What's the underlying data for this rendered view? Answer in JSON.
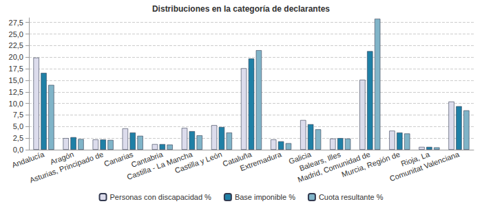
{
  "chart_data": {
    "type": "bar",
    "title": "Distribuciones en la categoría de declarantes",
    "categories": [
      "Andalucía",
      "Aragón",
      "Asturias, Principado de",
      "Canarias",
      "Cantabria",
      "Castilla - La Mancha",
      "Castilla y León",
      "Cataluña",
      "Extremadura",
      "Galicia",
      "Balears, Illes",
      "Madrid, Comunidad de",
      "Murcia, Región de",
      "Rioja, La",
      "Comunitat Valenciana"
    ],
    "series": [
      {
        "name": "Personas con discapacidad %",
        "color": "#dcdcec",
        "values": [
          19.9,
          2.5,
          2.2,
          4.6,
          1.2,
          4.7,
          5.3,
          17.6,
          2.2,
          6.4,
          2.4,
          15.1,
          4.1,
          0.6,
          10.4
        ]
      },
      {
        "name": "Base imponible %",
        "color": "#1f80a6",
        "values": [
          16.6,
          2.7,
          2.2,
          3.7,
          1.2,
          4.0,
          4.9,
          19.7,
          1.8,
          5.5,
          2.5,
          21.3,
          3.7,
          0.6,
          9.4
        ]
      },
      {
        "name": "Cuota resultante %",
        "color": "#80b4c8",
        "values": [
          14.0,
          2.3,
          2.1,
          3.0,
          1.1,
          3.1,
          3.7,
          21.5,
          1.4,
          4.4,
          2.4,
          28.3,
          3.5,
          0.5,
          8.5
        ]
      }
    ],
    "ylim": [
      0,
      28.5
    ],
    "yticks": [
      {
        "value": 0,
        "label": "0,0"
      },
      {
        "value": 2.5,
        "label": "2,5"
      },
      {
        "value": 5,
        "label": "5,0"
      },
      {
        "value": 7.5,
        "label": "7,5"
      },
      {
        "value": 10,
        "label": "10,0"
      },
      {
        "value": 12.5,
        "label": "12,5"
      },
      {
        "value": 15,
        "label": "15,0"
      },
      {
        "value": 17.5,
        "label": "17,5"
      },
      {
        "value": 20,
        "label": "20,0"
      },
      {
        "value": 22.5,
        "label": "22,5"
      },
      {
        "value": 25,
        "label": "25,0"
      },
      {
        "value": 27.5,
        "label": "27,5"
      }
    ],
    "grid": true,
    "legend": "bottom",
    "data_labels": false
  }
}
